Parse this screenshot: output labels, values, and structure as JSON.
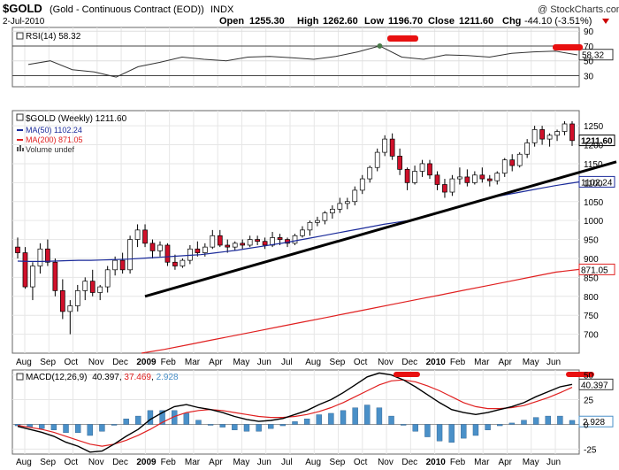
{
  "header": {
    "symbol": "$GOLD",
    "description": "(Gold - Continuous Contract (EOD))",
    "exchange": "INDX",
    "watermark": "@ StockCharts.com",
    "date": "2-Jul-2010",
    "open_label": "Open",
    "open_value": "1255.30",
    "high_label": "High",
    "high_value": "1262.60",
    "low_label": "Low",
    "low_value": "1196.70",
    "close_label": "Close",
    "close_value": "1211.60",
    "chg_label": "Chg",
    "chg_value": "-44.10 (-3.51%)",
    "chg_arrow_color": "#cc0000"
  },
  "colors": {
    "up_candle": "#ffffff",
    "down_candle": "#d0102a",
    "ma50": "#1a2a9a",
    "ma200": "#e02020",
    "trendline": "#000000",
    "macd_line": "#000000",
    "signal_line": "#e02020",
    "histogram": "#4a90c8",
    "rsi_line": "#333333",
    "highlight": "#e81010"
  },
  "x_axis": {
    "labels": [
      "Aug",
      "Sep",
      "Oct",
      "Nov",
      "Dec",
      "2009",
      "Feb",
      "Mar",
      "Apr",
      "May",
      "Jun",
      "Jul",
      "Aug",
      "Sep",
      "Oct",
      "Nov",
      "Dec",
      "2010",
      "Feb",
      "Mar",
      "Apr",
      "May",
      "Jun"
    ],
    "bold": [
      "2009",
      "2010"
    ]
  },
  "chart_data": [
    {
      "type": "line",
      "panel": "rsi",
      "legend": "RSI(14) 58.32",
      "last_value_label": "58.32",
      "ylim": [
        15,
        95
      ],
      "y_ticks": [
        "90",
        "70",
        "50",
        "30"
      ],
      "reference_lines": [
        70,
        30
      ],
      "series": [
        {
          "name": "RSI(14)",
          "values": [
            45,
            50,
            38,
            35,
            28,
            42,
            48,
            55,
            52,
            50,
            55,
            56,
            54,
            52,
            56,
            62,
            70,
            55,
            52,
            58,
            57,
            55,
            60,
            62,
            63,
            58
          ]
        }
      ]
    },
    {
      "type": "candlestick",
      "panel": "price",
      "legend": [
        "$GOLD (Weekly) 1211.60",
        "MA(50) 1102.24",
        "MA(200) 871.05",
        "Volume undef"
      ],
      "ylim": [
        650,
        1290
      ],
      "y_ticks": [
        "1250",
        "1200",
        "1150",
        "1100",
        "1050",
        "1000",
        "950",
        "900",
        "850",
        "800",
        "750",
        "700"
      ],
      "last_value_labels": [
        "1211.60",
        "1102.24",
        "871.05"
      ],
      "candles": [
        [
          930,
          955,
          900,
          915
        ],
        [
          915,
          930,
          820,
          825
        ],
        [
          825,
          890,
          790,
          880
        ],
        [
          880,
          940,
          860,
          925
        ],
        [
          925,
          950,
          880,
          890
        ],
        [
          890,
          900,
          800,
          815
        ],
        [
          815,
          845,
          740,
          760
        ],
        [
          760,
          790,
          700,
          775
        ],
        [
          775,
          830,
          760,
          815
        ],
        [
          815,
          850,
          790,
          840
        ],
        [
          840,
          870,
          800,
          810
        ],
        [
          810,
          830,
          790,
          825
        ],
        [
          825,
          880,
          810,
          870
        ],
        [
          870,
          905,
          855,
          895
        ],
        [
          895,
          915,
          860,
          870
        ],
        [
          870,
          960,
          860,
          950
        ],
        [
          950,
          990,
          930,
          975
        ],
        [
          975,
          990,
          930,
          940
        ],
        [
          940,
          950,
          900,
          920
        ],
        [
          920,
          945,
          905,
          935
        ],
        [
          935,
          940,
          880,
          890
        ],
        [
          890,
          910,
          870,
          880
        ],
        [
          880,
          900,
          875,
          895
        ],
        [
          895,
          935,
          885,
          925
        ],
        [
          925,
          945,
          905,
          915
        ],
        [
          915,
          940,
          905,
          930
        ],
        [
          930,
          975,
          925,
          960
        ],
        [
          960,
          975,
          930,
          935
        ],
        [
          935,
          950,
          915,
          930
        ],
        [
          930,
          945,
          920,
          940
        ],
        [
          940,
          950,
          925,
          935
        ],
        [
          935,
          960,
          930,
          950
        ],
        [
          950,
          960,
          935,
          945
        ],
        [
          945,
          955,
          925,
          935
        ],
        [
          935,
          970,
          930,
          955
        ],
        [
          955,
          965,
          935,
          950
        ],
        [
          950,
          955,
          930,
          940
        ],
        [
          940,
          965,
          935,
          960
        ],
        [
          960,
          985,
          955,
          975
        ],
        [
          975,
          1000,
          960,
          995
        ],
        [
          995,
          1010,
          985,
          1000
        ],
        [
          1000,
          1025,
          990,
          1020
        ],
        [
          1020,
          1040,
          1005,
          1030
        ],
        [
          1030,
          1060,
          1020,
          1045
        ],
        [
          1045,
          1060,
          1030,
          1050
        ],
        [
          1050,
          1090,
          1040,
          1080
        ],
        [
          1080,
          1120,
          1070,
          1110
        ],
        [
          1110,
          1145,
          1100,
          1140
        ],
        [
          1140,
          1190,
          1130,
          1180
        ],
        [
          1180,
          1225,
          1170,
          1215
        ],
        [
          1215,
          1230,
          1160,
          1170
        ],
        [
          1170,
          1190,
          1120,
          1135
        ],
        [
          1135,
          1140,
          1080,
          1100
        ],
        [
          1100,
          1145,
          1095,
          1130
        ],
        [
          1130,
          1160,
          1115,
          1150
        ],
        [
          1150,
          1160,
          1110,
          1120
        ],
        [
          1120,
          1130,
          1080,
          1095
        ],
        [
          1095,
          1110,
          1060,
          1075
        ],
        [
          1075,
          1120,
          1065,
          1110
        ],
        [
          1110,
          1140,
          1095,
          1115
        ],
        [
          1115,
          1135,
          1090,
          1100
        ],
        [
          1100,
          1130,
          1095,
          1120
        ],
        [
          1120,
          1140,
          1100,
          1110
        ],
        [
          1110,
          1120,
          1090,
          1105
        ],
        [
          1105,
          1130,
          1095,
          1125
        ],
        [
          1125,
          1165,
          1115,
          1160
        ],
        [
          1160,
          1175,
          1130,
          1145
        ],
        [
          1145,
          1180,
          1140,
          1175
        ],
        [
          1175,
          1215,
          1165,
          1205
        ],
        [
          1205,
          1250,
          1195,
          1240
        ],
        [
          1240,
          1250,
          1200,
          1215
        ],
        [
          1215,
          1230,
          1195,
          1225
        ],
        [
          1225,
          1240,
          1210,
          1235
        ],
        [
          1235,
          1262,
          1225,
          1255
        ],
        [
          1255,
          1262,
          1197,
          1211
        ]
      ],
      "ma50": [
        893,
        892,
        892,
        893,
        894,
        895,
        895,
        896,
        897,
        898,
        900,
        902,
        904,
        906,
        908,
        910,
        914,
        918,
        922,
        927,
        932,
        937,
        942,
        948,
        954,
        960,
        966,
        972,
        978,
        984,
        990,
        995,
        1000,
        1007,
        1015,
        1025,
        1035,
        1045,
        1055,
        1062,
        1068,
        1074,
        1080,
        1086,
        1092,
        1097,
        1102
      ],
      "ma200": [
        650,
        660,
        672,
        684,
        696,
        708,
        720,
        732,
        744,
        756,
        768,
        780,
        792,
        804,
        816,
        828,
        840,
        852,
        864,
        871
      ],
      "trendline": [
        [
          800,
          0
        ],
        [
          1200,
          1
        ]
      ]
    },
    {
      "type": "line",
      "panel": "macd",
      "legend": "MACD(12,26,9) 40.397, 37.469, 2.928",
      "legend_parts": {
        "name": "MACD(12,26,9)",
        "macd": "40.397",
        "signal": "37.469",
        "hist": "2.928"
      },
      "ylim": [
        -30,
        55
      ],
      "y_ticks": [
        "50",
        "25",
        "0",
        "-25"
      ],
      "last_value_labels": [
        "40.397",
        "2.928"
      ],
      "series": [
        {
          "name": "MACD",
          "values": [
            -2,
            -5,
            -8,
            -12,
            -18,
            -22,
            -28,
            -27,
            -20,
            -12,
            -5,
            5,
            12,
            18,
            20,
            17,
            15,
            12,
            8,
            5,
            3,
            4,
            6,
            10,
            14,
            20,
            25,
            32,
            40,
            48,
            52,
            50,
            45,
            38,
            30,
            22,
            15,
            12,
            10,
            12,
            15,
            18,
            22,
            28,
            33,
            38,
            40.4
          ]
        },
        {
          "name": "Signal",
          "values": [
            -1,
            -3,
            -5,
            -8,
            -12,
            -16,
            -20,
            -22,
            -20,
            -16,
            -11,
            -5,
            2,
            8,
            12,
            14,
            15,
            14,
            12,
            10,
            8,
            7,
            7,
            8,
            10,
            13,
            17,
            22,
            28,
            34,
            40,
            44,
            45,
            43,
            39,
            34,
            28,
            22,
            18,
            16,
            16,
            17,
            19,
            23,
            27,
            32,
            37.5
          ]
        }
      ]
    }
  ]
}
